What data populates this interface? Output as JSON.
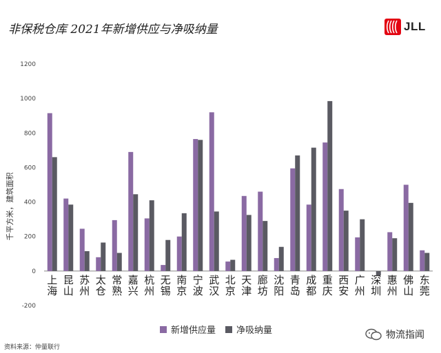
{
  "title": "非保税仓库 2021年新增供应与净吸纳量",
  "logo": {
    "text": "JLL",
    "color": "#e30613"
  },
  "source": "资料来源：仲量联行",
  "watermark": "物流指闻",
  "colors": {
    "supply": "#8a6aa3",
    "absorption": "#5a5a62",
    "axis": "#888888",
    "grid": "#eeeeee"
  },
  "chart_data": {
    "type": "bar",
    "title": "非保税仓库 2021年新增供应与净吸纳量",
    "ylabel": "千平方米，建筑面积",
    "xlabel": "",
    "ylim": [
      -200,
      1200
    ],
    "yticks": [
      -200,
      0,
      200,
      400,
      600,
      800,
      1000,
      1200
    ],
    "grid": false,
    "legend_position": "bottom",
    "categories": [
      "上海",
      "昆山",
      "苏州",
      "太仓",
      "常熟",
      "嘉兴",
      "杭州",
      "无锡",
      "南京",
      "宁波",
      "武汉",
      "北京",
      "天津",
      "廊坊",
      "沈阳",
      "青岛",
      "成都",
      "重庆",
      "西安",
      "广州",
      "深圳",
      "惠州",
      "佛山",
      "东莞"
    ],
    "series": [
      {
        "name": "新增供应量",
        "values": [
          915,
          420,
          245,
          80,
          295,
          690,
          305,
          35,
          200,
          765,
          920,
          55,
          435,
          460,
          75,
          595,
          385,
          745,
          475,
          195,
          0,
          225,
          500,
          120
        ]
      },
      {
        "name": "净吸纳量",
        "values": [
          660,
          385,
          115,
          165,
          105,
          445,
          410,
          180,
          335,
          760,
          345,
          65,
          325,
          290,
          140,
          670,
          715,
          985,
          350,
          300,
          -25,
          190,
          395,
          105
        ]
      }
    ]
  }
}
